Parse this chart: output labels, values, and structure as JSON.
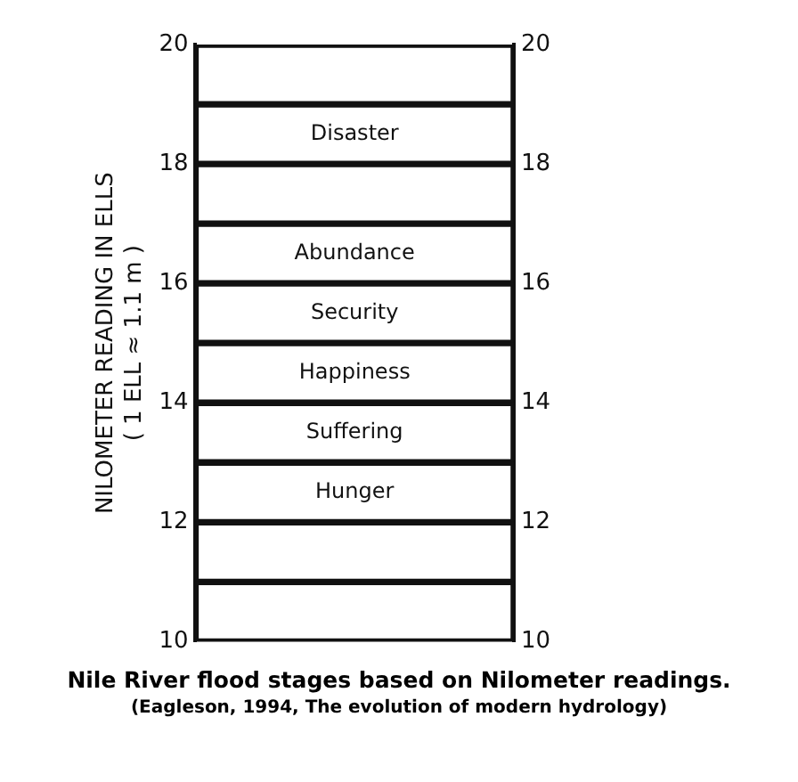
{
  "chart_data": {
    "type": "bar",
    "title": "Nile River flood stages based on Nilometer readings.",
    "subtitle": "(Eagleson, 1994, The evolution of modern hydrology)",
    "ylabel": "NILOMETER READING IN ELLS\n( 1 ELL ≈ 1.1 m )",
    "categories": [
      null
    ],
    "ylim": [
      10,
      20
    ],
    "yticks": [
      10,
      12,
      14,
      16,
      18,
      20
    ],
    "y2lim": [
      10,
      20
    ],
    "y2ticks": [
      10,
      12,
      14,
      16,
      18,
      20
    ],
    "series": [
      {
        "color": "#111111",
        "values": [
          1
        ],
        "base": [
          10
        ]
      },
      {
        "color": "#111111",
        "values": [
          1
        ],
        "base": [
          11
        ]
      },
      {
        "name": "Hunger",
        "color": "#111111",
        "values": [
          1
        ],
        "base": [
          12
        ]
      },
      {
        "name": "Suffering",
        "color": "#111111",
        "values": [
          1
        ],
        "base": [
          13
        ]
      },
      {
        "name": "Happiness",
        "color": "#111111",
        "values": [
          1
        ],
        "base": [
          14
        ]
      },
      {
        "name": "Security",
        "color": "#111111",
        "values": [
          1
        ],
        "base": [
          15
        ]
      },
      {
        "name": "Abundance",
        "color": "#111111",
        "values": [
          1
        ],
        "base": [
          16
        ]
      },
      {
        "color": "#111111",
        "values": [
          1
        ],
        "base": [
          17
        ]
      },
      {
        "name": "Disaster",
        "color": "#111111",
        "values": [
          1
        ],
        "base": [
          18
        ]
      },
      {
        "color": "#111111",
        "values": [
          1
        ],
        "base": [
          19
        ]
      }
    ]
  }
}
